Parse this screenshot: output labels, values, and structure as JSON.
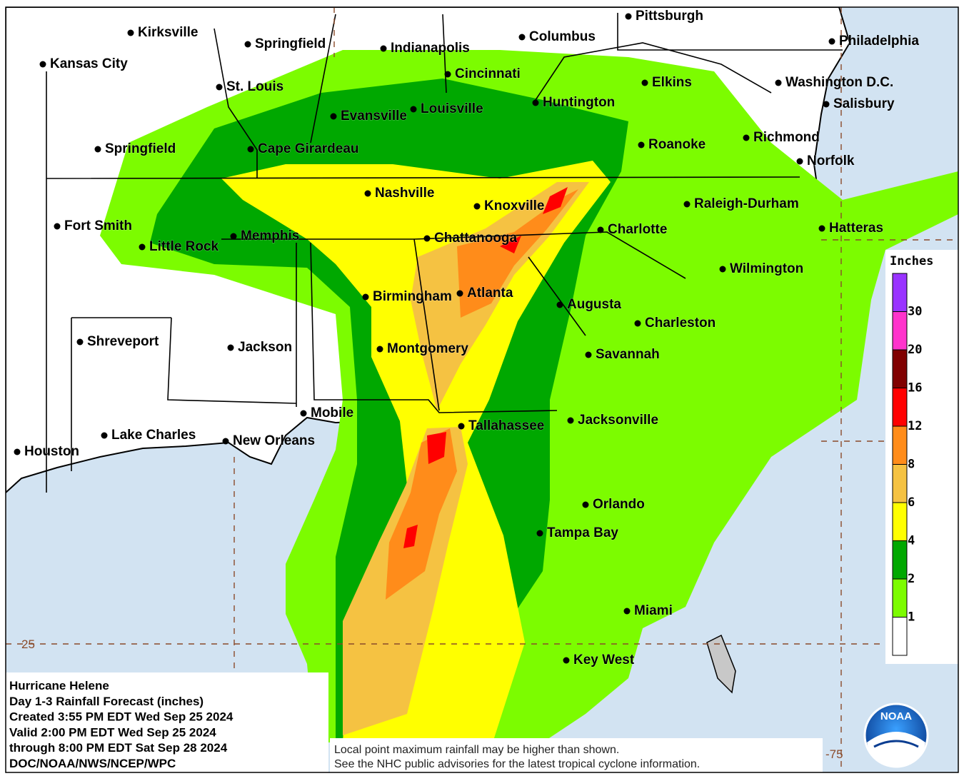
{
  "map": {
    "cities": [
      "Kirksville",
      "Springfield",
      "Indianapolis",
      "Columbus",
      "Pittsburgh",
      "Philadelphia",
      "Kansas City",
      "St. Louis",
      "Cincinnati",
      "Elkins",
      "Washington D.C.",
      "Salisbury",
      "Evansville",
      "Louisville",
      "Huntington",
      "Springfield",
      "Cape Girardeau",
      "Roanoke",
      "Richmond",
      "Norfolk",
      "Nashville",
      "Knoxville",
      "Raleigh-Durham",
      "Fort Smith",
      "Memphis",
      "Little Rock",
      "Chattanooga",
      "Charlotte",
      "Hatteras",
      "Wilmington",
      "Birmingham",
      "Atlanta",
      "Augusta",
      "Charleston",
      "Shreveport",
      "Jackson",
      "Montgomery",
      "Savannah",
      "Mobile",
      "Tallahassee",
      "Jacksonville",
      "Lake Charles",
      "New Orleans",
      "Houston",
      "Orlando",
      "Tampa Bay",
      "Miami",
      "Key West"
    ],
    "lat_labels": [
      25
    ],
    "lon_labels": [
      -75
    ],
    "legend": {
      "title": "Inches",
      "levels": [
        1,
        2,
        4,
        6,
        8,
        12,
        16,
        20,
        30
      ],
      "colors": [
        "#ffffff",
        "#7cfc00",
        "#00a800",
        "#ffff00",
        "#f5c242",
        "#ff8c1a",
        "#ff0000",
        "#800000",
        "#ff33cc",
        "#9933ff"
      ]
    },
    "info": [
      "Hurricane Helene",
      "Day 1-3 Rainfall Forecast (inches)",
      "Created 3:55 PM EDT Wed Sep 25 2024",
      "Valid 2:00 PM EDT Wed Sep 25 2024",
      "through 8:00 PM EDT Sat Sep 28 2024",
      "DOC/NOAA/NWS/NCEP/WPC"
    ],
    "note": [
      "Local point maximum rainfall may be higher than shown.",
      "See the NHC public advisories for the latest tropical cyclone information."
    ],
    "logo": "NOAA"
  }
}
